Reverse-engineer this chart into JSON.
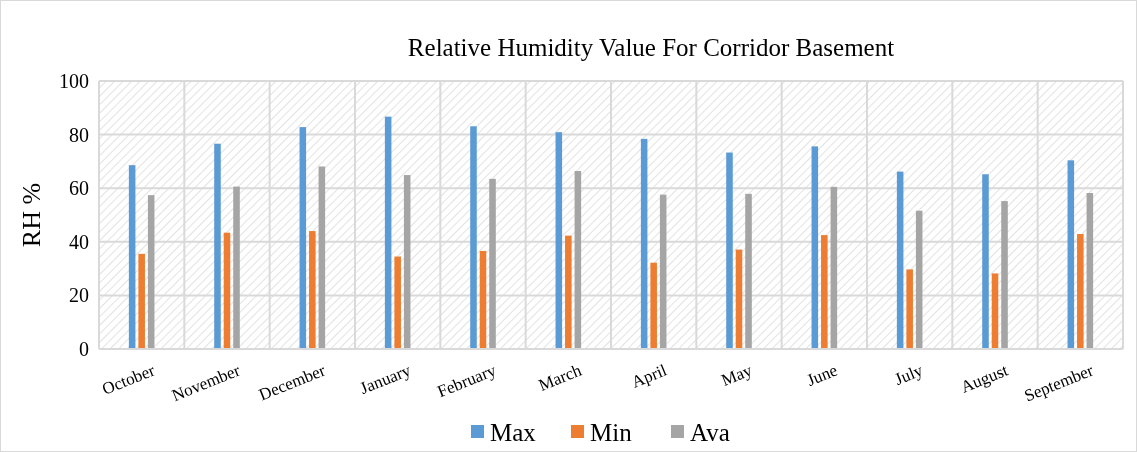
{
  "chart_data": {
    "type": "bar",
    "title": "Relative Humidity Value For Corridor Basement",
    "ylabel": "RH %",
    "categories": [
      "October",
      "November",
      "December",
      "January",
      "February",
      "March",
      "April",
      "May",
      "June",
      "July",
      "August",
      "September"
    ],
    "series": [
      {
        "name": "Max",
        "color": "#5b9bd5",
        "values": [
          68.6,
          76.6,
          82.8,
          86.7,
          83.1,
          80.9,
          78.4,
          73.3,
          75.6,
          66.2,
          65.2,
          70.4
        ]
      },
      {
        "name": "Min",
        "color": "#ed7d31",
        "values": [
          35.5,
          43.4,
          44.0,
          34.5,
          36.6,
          42.3,
          32.2,
          37.1,
          42.5,
          29.7,
          28.2,
          42.9
        ]
      },
      {
        "name": "Ava",
        "color": "#a5a5a5",
        "values": [
          57.4,
          60.6,
          68.1,
          64.9,
          63.5,
          66.4,
          57.6,
          57.9,
          60.5,
          51.6,
          55.2,
          58.2
        ]
      }
    ],
    "ylim": [
      0,
      100
    ],
    "yticks": [
      0,
      20,
      40,
      60,
      80,
      100
    ],
    "grid": true,
    "legend": "bottom"
  }
}
